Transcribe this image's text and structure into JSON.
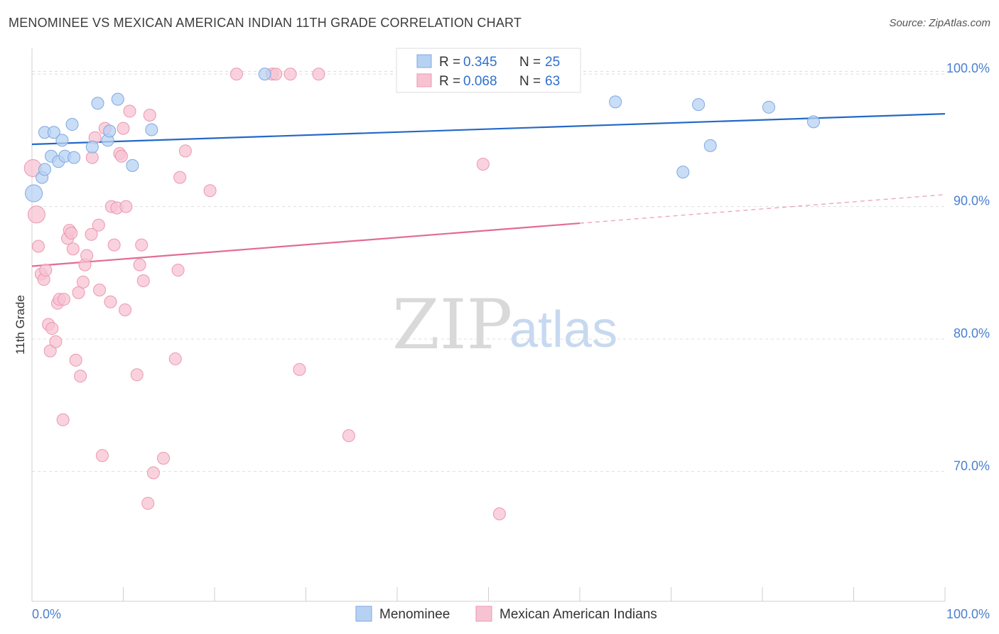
{
  "title": "MENOMINEE VS MEXICAN AMERICAN INDIAN 11TH GRADE CORRELATION CHART",
  "source": "Source: ZipAtlas.com",
  "watermark": {
    "zip": "ZIP",
    "atlas": "atlas"
  },
  "colors": {
    "blue_fill": "#b7d1f3",
    "blue_stroke": "#7fa9e0",
    "blue_line": "#2468c8",
    "pink_fill": "#f7c3d3",
    "pink_stroke": "#eb97b2",
    "pink_line": "#e26b96",
    "grid": "#dddddd",
    "axis_text": "#4a7fcf"
  },
  "legend": {
    "r_label": "R =",
    "n_label": "N =",
    "rows": [
      {
        "series": "Menominee",
        "r": "0.345",
        "n": "25"
      },
      {
        "series": "Mexican American Indians",
        "r": "0.068",
        "n": "63"
      }
    ]
  },
  "chart_data": {
    "type": "scatter",
    "title": "MENOMINEE VS MEXICAN AMERICAN INDIAN 11TH GRADE CORRELATION CHART",
    "xlabel": "",
    "ylabel": "11th Grade",
    "xlim": [
      0,
      100
    ],
    "ylim": [
      60.2,
      101.3
    ],
    "x_tick_labels": [
      "0.0%",
      "100.0%"
    ],
    "y_ticks": [
      70,
      80,
      90,
      100
    ],
    "y_tick_labels": [
      "70.0%",
      "80.0%",
      "90.0%",
      "100.0%"
    ],
    "legend_position": "top-center",
    "series": [
      {
        "name": "Menominee",
        "r": 0.345,
        "n": 25,
        "trend": {
          "x0": 0,
          "y0": 94.7,
          "x1": 100,
          "y1": 97.0,
          "dashed_from": null
        },
        "points": [
          [
            0.2,
            91.0
          ],
          [
            1.1,
            92.2
          ],
          [
            1.4,
            92.8
          ],
          [
            1.4,
            95.6
          ],
          [
            2.1,
            93.8
          ],
          [
            2.4,
            95.6
          ],
          [
            3.3,
            95.0
          ],
          [
            2.9,
            93.4
          ],
          [
            3.6,
            93.8
          ],
          [
            4.4,
            96.2
          ],
          [
            4.6,
            93.7
          ],
          [
            6.6,
            94.5
          ],
          [
            7.2,
            97.8
          ],
          [
            8.3,
            95.0
          ],
          [
            8.5,
            95.7
          ],
          [
            9.4,
            98.1
          ],
          [
            11.0,
            93.1
          ],
          [
            13.1,
            95.8
          ],
          [
            25.5,
            100.0
          ],
          [
            63.9,
            97.9
          ],
          [
            71.3,
            92.6
          ],
          [
            73.0,
            97.7
          ],
          [
            74.3,
            94.6
          ],
          [
            80.7,
            97.5
          ],
          [
            85.6,
            96.4
          ]
        ]
      },
      {
        "name": "Mexican American Indians",
        "r": 0.068,
        "n": 63,
        "trend": {
          "x0": 0,
          "y0": 85.5,
          "x1": 100,
          "y1": 90.9,
          "dashed_from": 60
        },
        "points": [
          [
            0.1,
            92.9
          ],
          [
            0.5,
            89.4
          ],
          [
            0.7,
            87.0
          ],
          [
            1.0,
            84.9
          ],
          [
            1.3,
            84.5
          ],
          [
            1.5,
            85.2
          ],
          [
            1.8,
            81.1
          ],
          [
            2.0,
            79.1
          ],
          [
            2.2,
            80.8
          ],
          [
            2.6,
            79.8
          ],
          [
            2.8,
            82.7
          ],
          [
            3.0,
            83.0
          ],
          [
            3.5,
            83.0
          ],
          [
            3.4,
            73.9
          ],
          [
            3.9,
            87.6
          ],
          [
            4.1,
            88.2
          ],
          [
            4.3,
            88.0
          ],
          [
            4.5,
            86.8
          ],
          [
            4.8,
            78.4
          ],
          [
            5.1,
            83.5
          ],
          [
            5.3,
            77.2
          ],
          [
            5.6,
            84.3
          ],
          [
            5.8,
            85.6
          ],
          [
            6.0,
            86.3
          ],
          [
            6.5,
            87.9
          ],
          [
            6.6,
            93.7
          ],
          [
            6.9,
            95.2
          ],
          [
            7.3,
            88.6
          ],
          [
            7.4,
            83.7
          ],
          [
            7.7,
            71.2
          ],
          [
            8.0,
            95.9
          ],
          [
            8.6,
            82.8
          ],
          [
            8.7,
            90.0
          ],
          [
            9.0,
            87.1
          ],
          [
            9.3,
            89.9
          ],
          [
            9.6,
            94.0
          ],
          [
            9.8,
            93.8
          ],
          [
            10.0,
            95.9
          ],
          [
            10.2,
            82.2
          ],
          [
            10.3,
            90.0
          ],
          [
            10.7,
            97.2
          ],
          [
            11.5,
            77.3
          ],
          [
            11.8,
            85.6
          ],
          [
            12.0,
            87.1
          ],
          [
            12.2,
            84.4
          ],
          [
            12.7,
            67.6
          ],
          [
            12.9,
            96.9
          ],
          [
            13.3,
            69.9
          ],
          [
            14.4,
            71.0
          ],
          [
            15.7,
            78.5
          ],
          [
            16.0,
            85.2
          ],
          [
            16.2,
            92.2
          ],
          [
            16.8,
            94.2
          ],
          [
            19.5,
            91.2
          ],
          [
            22.4,
            100.0
          ],
          [
            26.3,
            100.0
          ],
          [
            26.7,
            100.0
          ],
          [
            28.3,
            100.0
          ],
          [
            29.3,
            77.7
          ],
          [
            31.4,
            100.0
          ],
          [
            34.7,
            72.7
          ],
          [
            49.4,
            93.2
          ],
          [
            51.2,
            66.8
          ]
        ]
      }
    ]
  }
}
